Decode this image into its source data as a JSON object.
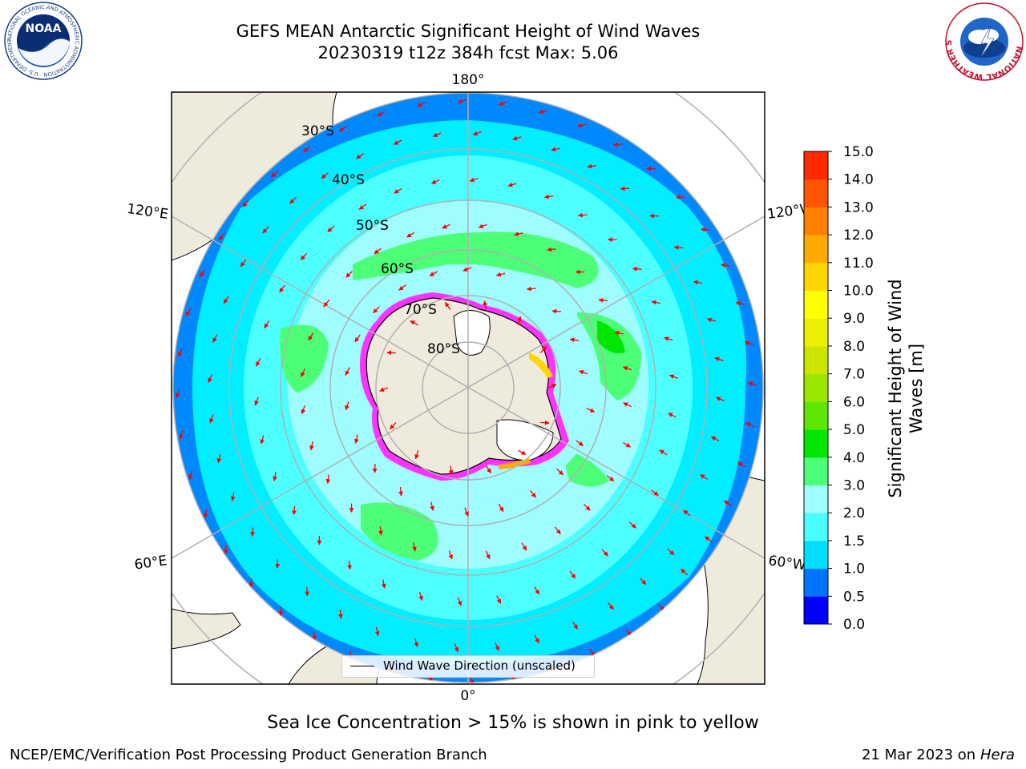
{
  "header": {
    "title_line1": "GEFS MEAN Antarctic Significant Height of Wind Waves",
    "title_line2": "20230319 t12z 384h fcst   Max: 5.06"
  },
  "logos": {
    "noaa": {
      "text": "NOAA",
      "ring_text": "NATIONAL OCEANIC AND ATMOSPHERIC ADMINISTRATION · U.S. DEPARTMENT OF COMMERCE"
    },
    "nws": {
      "ring_text": "NATIONAL WEATHER SERVICE"
    }
  },
  "map": {
    "longitude_labels": {
      "top": "180°",
      "bottom": "0°",
      "upper_left": "120°E",
      "lower_left": "60°E",
      "upper_right": "120°W",
      "lower_right": "60°W"
    },
    "latitude_labels": [
      "30°S",
      "40°S",
      "50°S",
      "60°S",
      "70°S",
      "80°S"
    ],
    "legend_label": "Wind Wave Direction (unscaled)",
    "colors": {
      "land": "#efebdc",
      "ice_pink": "#ff33ff",
      "ice_yellow": "#ffd700",
      "arrow": "#ff0000",
      "grid": "#b0b0b0"
    }
  },
  "colorbar": {
    "label_line1": "Significant Height of Wind",
    "label_line2": "Waves [m]",
    "ticks": [
      "0.0",
      "0.5",
      "1.0",
      "1.5",
      "2.0",
      "3.0",
      "4.0",
      "5.0",
      "6.0",
      "7.0",
      "8.0",
      "9.0",
      "10.0",
      "11.0",
      "12.0",
      "13.0",
      "14.0",
      "15.0"
    ],
    "colors": [
      "#0000ff",
      "#0073ff",
      "#00ddff",
      "#47ffff",
      "#9ffcff",
      "#4dff77",
      "#00e600",
      "#5ce600",
      "#9be600",
      "#cde600",
      "#eaf000",
      "#ffff00",
      "#ffd500",
      "#ffaa00",
      "#ff8000",
      "#ff5500",
      "#ff2a00",
      "#ff0000"
    ]
  },
  "caption": "Sea Ice Concentration > 15% is shown in pink to yellow",
  "footer": {
    "left": "NCEP/EMC/Verification Post Processing Product Generation Branch",
    "right_date": "21 Mar 2023 on",
    "right_host": "Hera"
  }
}
